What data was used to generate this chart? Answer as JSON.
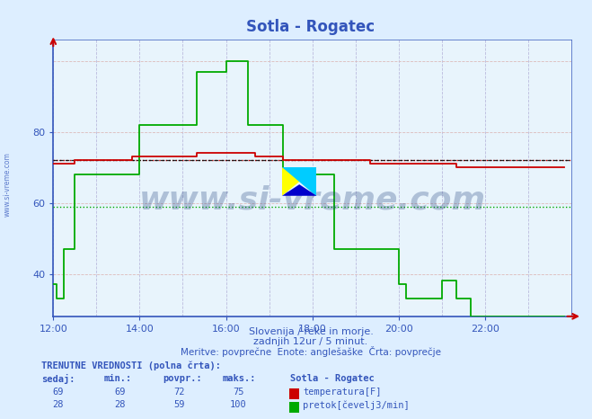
{
  "title": "Sotla - Rogatec",
  "bg_color": "#ddeeff",
  "plot_bg_color": "#ffffff",
  "inner_bg_color": "#e8f4fc",
  "temp_color": "#cc0000",
  "flow_color": "#00aa00",
  "text_color": "#3355bb",
  "axis_color": "#3355bb",
  "grid_v_color": "#bbbbdd",
  "grid_h_color": "#ddbbbb",
  "avg_temp_dotted_color": "#cc0000",
  "avg_flow_dotted_color": "#00aa00",
  "avg_line_color": "#000000",
  "subtitle1": "Slovenija / reke in morje.",
  "subtitle2": "zadnjih 12ur / 5 minut.",
  "subtitle3": "Meritve: povprečne  Enote: anglešaške  Črta: povprečje",
  "footer_title": "TRENUTNE VREDNOSTI (polna črta):",
  "footer_col1": "sedaj:",
  "footer_col2": "min.:",
  "footer_col3": "povpr.:",
  "footer_col4": "maks.:",
  "footer_col5": "Sotla - Rogatec",
  "temp_sedaj": 69,
  "temp_min": 69,
  "temp_povpr": 72,
  "temp_maks": 75,
  "flow_sedaj": 28,
  "flow_min": 28,
  "flow_povpr": 59,
  "flow_maks": 100,
  "temp_label": "temperatura[F]",
  "flow_label": "pretok[čevelj3/min]",
  "avg_temp": 72,
  "avg_flow": 59,
  "watermark": "www.si-vreme.com",
  "left_label": "www.si-vreme.com",
  "y_min": 28,
  "y_max": 106,
  "x_min": 12.0,
  "x_max": 24.0,
  "x_ticks": [
    12,
    14,
    16,
    18,
    20,
    22
  ],
  "x_tick_labels": [
    "12:00",
    "14:00",
    "16:00",
    "18:00",
    "20:00",
    "22:00"
  ],
  "y_ticks": [
    40,
    60,
    80
  ],
  "y_tick_labels": [
    "40",
    "60",
    "80"
  ]
}
